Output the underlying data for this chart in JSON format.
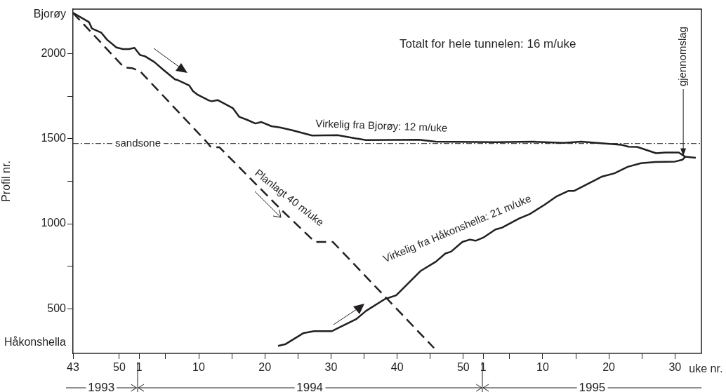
{
  "chart_data": {
    "type": "line",
    "xlabel": "uke nr.",
    "ylabel": "Profil nr.",
    "xlim": [
      "1993-10-25",
      "1995-08-21"
    ],
    "xticks": [
      {
        "value": "1993-10-25",
        "label": "43"
      },
      {
        "value": "1993-12-13",
        "label": "50"
      },
      {
        "value": "1994-01-03",
        "label": "1"
      },
      {
        "value": "1994-01-31",
        "label": null
      },
      {
        "value": "1994-03-07",
        "label": "10"
      },
      {
        "value": "1994-04-11",
        "label": null
      },
      {
        "value": "1994-05-16",
        "label": "20"
      },
      {
        "value": "1994-06-20",
        "label": null
      },
      {
        "value": "1994-07-25",
        "label": "30"
      },
      {
        "value": "1994-08-29",
        "label": null
      },
      {
        "value": "1994-10-03",
        "label": "40"
      },
      {
        "value": "1994-11-07",
        "label": null
      },
      {
        "value": "1994-12-12",
        "label": "50"
      },
      {
        "value": "1995-01-02",
        "label": "1"
      },
      {
        "value": "1995-01-30",
        "label": null
      },
      {
        "value": "1995-03-06",
        "label": "10"
      },
      {
        "value": "1995-04-10",
        "label": null
      },
      {
        "value": "1995-05-15",
        "label": "20"
      },
      {
        "value": "1995-06-19",
        "label": null
      },
      {
        "value": "1995-07-24",
        "label": "30"
      }
    ],
    "ylim": [
      237,
      2263
    ],
    "yticks": [
      {
        "value": 300,
        "label": "Håkonshella"
      },
      500,
      {
        "value": 750,
        "label": null
      },
      1000,
      {
        "value": 1250,
        "label": null
      },
      1500,
      {
        "value": 1750,
        "label": null
      },
      2000,
      {
        "value": 2230,
        "label": "Bjorøy"
      }
    ],
    "grid": false,
    "legend": false,
    "marker": "none",
    "series": [
      {
        "name": "Virkelig fra Bjorøy: 12 m/uke",
        "color": "#231f20",
        "line_style": "solid",
        "x": [
          "1993-10-25",
          "1993-11-05",
          "1993-11-11",
          "1993-11-14",
          "1993-11-24",
          "1993-11-30",
          "1993-12-10",
          "1993-12-17",
          "1993-12-23",
          "1993-12-29",
          "1994-01-04",
          "1994-01-09",
          "1994-01-19",
          "1994-01-29",
          "1994-02-10",
          "1994-02-13",
          "1994-02-25",
          "1994-03-01",
          "1994-03-06",
          "1994-03-18",
          "1994-03-21",
          "1994-03-27",
          "1994-04-12",
          "1994-04-19",
          "1994-04-27",
          "1994-05-06",
          "1994-05-12",
          "1994-05-23",
          "1994-06-01",
          "1994-06-14",
          "1994-07-05",
          "1994-08-01",
          "1994-08-31",
          "1994-10-26",
          "1994-11-13",
          "1995-01-16",
          "1995-02-24",
          "1995-03-28",
          "1995-04-16",
          "1995-05-28",
          "1995-06-05",
          "1995-06-14",
          "1995-07-04",
          "1995-07-14",
          "1995-07-28",
          "1995-08-04",
          "1995-08-15"
        ],
        "values": [
          2241,
          2206,
          2186,
          2149,
          2124,
          2083,
          2037,
          2028,
          2028,
          2035,
          1993,
          1986,
          1952,
          1904,
          1849,
          1845,
          1814,
          1780,
          1759,
          1725,
          1721,
          1728,
          1681,
          1629,
          1612,
          1590,
          1599,
          1574,
          1567,
          1550,
          1519,
          1521,
          1492,
          1494,
          1483,
          1480,
          1483,
          1476,
          1483,
          1465,
          1453,
          1452,
          1415,
          1419,
          1419,
          1394,
          1388
        ]
      },
      {
        "name": "Virkelig fra Håkonshella: 21 m/uke",
        "color": "#231f20",
        "line_style": "solid",
        "x": [
          "1994-05-30",
          "1994-06-07",
          "1994-06-26",
          "1994-07-07",
          "1994-07-26",
          "1994-07-29",
          "1994-08-21",
          "1994-08-31",
          "1994-09-20",
          "1994-10-02",
          "1994-10-28",
          "1994-11-13",
          "1994-11-23",
          "1994-11-29",
          "1994-12-11",
          "1994-12-19",
          "1994-12-25",
          "1995-01-02",
          "1995-01-15",
          "1995-01-22",
          "1995-02-09",
          "1995-02-21",
          "1995-03-08",
          "1995-03-21",
          "1995-04-02",
          "1995-04-08",
          "1995-05-08",
          "1995-05-21",
          "1995-06-04",
          "1995-06-18",
          "1995-07-03",
          "1995-07-24",
          "1995-08-01",
          "1995-08-04"
        ],
        "values": [
          281,
          292,
          357,
          368,
          368,
          377,
          440,
          487,
          557,
          579,
          723,
          777,
          825,
          836,
          893,
          907,
          900,
          918,
          966,
          977,
          1031,
          1059,
          1112,
          1162,
          1193,
          1193,
          1278,
          1297,
          1335,
          1356,
          1363,
          1366,
          1377,
          1394
        ]
      },
      {
        "name": "Planlagt 40 m/uke",
        "color": "#231f20",
        "line_style": "dashed",
        "x": [
          "1993-10-25",
          "1993-12-18",
          "1993-12-27",
          "1994-01-04",
          "1994-03-15",
          "1994-03-20",
          "1994-03-29",
          "1994-06-03",
          "1994-07-08",
          "1994-07-27",
          "1994-11-11"
        ],
        "values": [
          2241,
          1920,
          1915,
          1897,
          1484,
          1450,
          1450,
          1079,
          893,
          893,
          269
        ]
      }
    ],
    "ref_lines": [
      {
        "axis": "y",
        "value": 1472,
        "label": "sandsone",
        "color": "#231f20",
        "line_style": "dashdot"
      }
    ],
    "annotations": [
      "Totalt for hele tunnelen: 16 m/uke",
      {
        "text": "gjennomslag",
        "x": "1995-08-04",
        "y": 1394
      },
      "1993",
      "1994",
      "1995"
    ]
  }
}
